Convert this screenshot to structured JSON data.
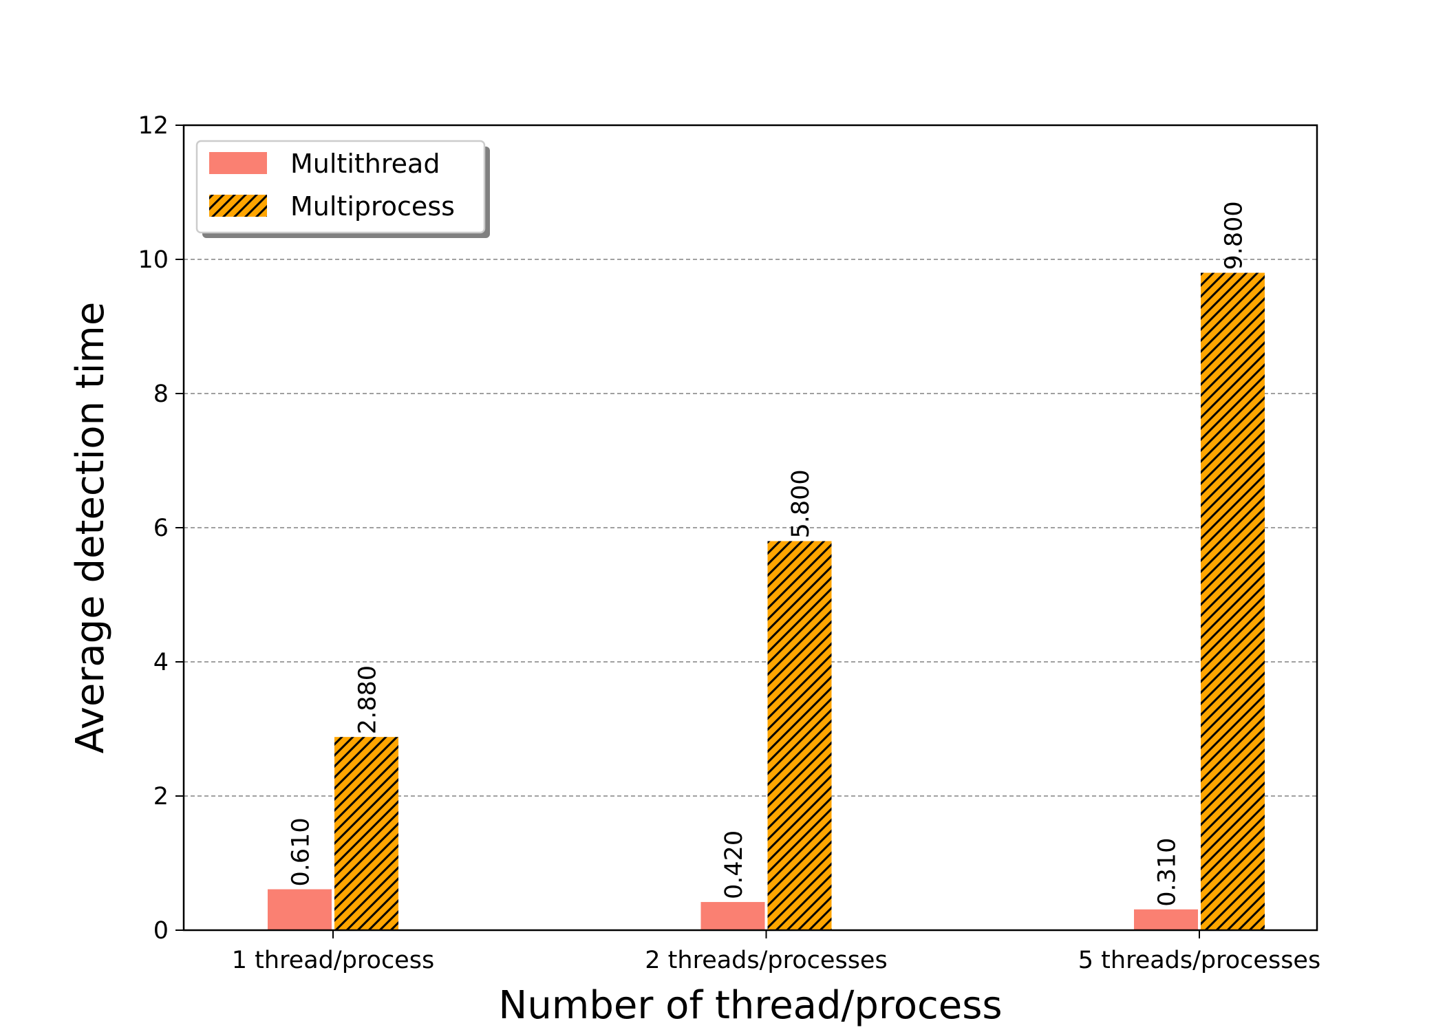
{
  "chart_data": {
    "type": "bar",
    "title": "",
    "xlabel": "Number of thread/process",
    "ylabel": "Average detection time",
    "categories": [
      "1 thread/process",
      "2 threads/processes",
      "5 threads/processes"
    ],
    "series": [
      {
        "name": "Multithread",
        "values": [
          0.61,
          0.42,
          0.31
        ],
        "value_labels": [
          "0.610",
          "0.420",
          "0.310"
        ],
        "color": "#fa8072",
        "hatch": "none"
      },
      {
        "name": "Multiprocess",
        "values": [
          2.88,
          5.8,
          9.8
        ],
        "value_labels": [
          "2.880",
          "5.800",
          "9.800"
        ],
        "color": "#ffa500",
        "hatch": "diagonal"
      }
    ],
    "ylim": [
      0,
      12
    ],
    "yticks": [
      0,
      2,
      4,
      6,
      8,
      10,
      12
    ],
    "ytick_labels": [
      "0",
      "2",
      "4",
      "6",
      "8",
      "10",
      "12"
    ],
    "grid": "y-dashed",
    "legend_position": "upper-left"
  }
}
